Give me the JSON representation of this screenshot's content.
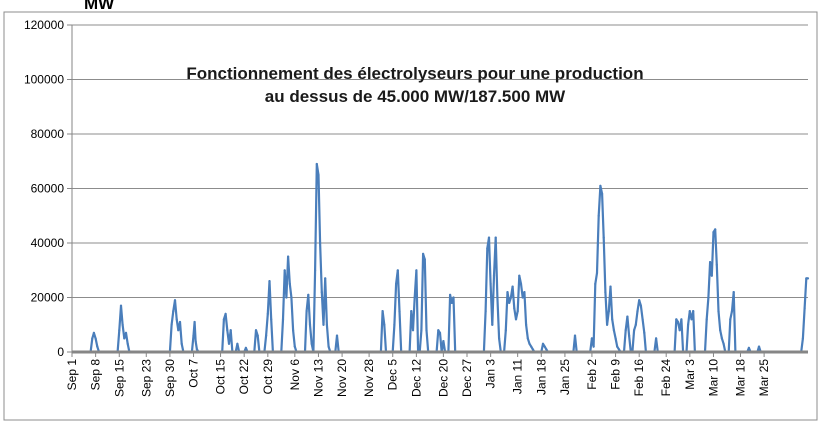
{
  "chart_data": {
    "type": "area",
    "title_line1": "Fonctionnement des électrolyseurs pour une production",
    "title_line2": "au dessus de 45.000 MW/187.500 MW",
    "ylabel": "MW",
    "ylim": [
      0,
      120000
    ],
    "yticks": [
      "0",
      "20000",
      "40000",
      "60000",
      "80000",
      "100000",
      "120000"
    ],
    "grid": true,
    "legend": "none",
    "color": "#4a7ebb",
    "xlim": [
      0,
      218
    ],
    "xticks": [
      {
        "day": 0,
        "label": "Sep 1"
      },
      {
        "day": 7,
        "label": "Sep 8"
      },
      {
        "day": 14,
        "label": "Sep 15"
      },
      {
        "day": 22,
        "label": "Sep 23"
      },
      {
        "day": 29,
        "label": "Sep 30"
      },
      {
        "day": 36,
        "label": "Oct 7"
      },
      {
        "day": 44,
        "label": "Oct 15"
      },
      {
        "day": 51,
        "label": "Oct 22"
      },
      {
        "day": 58,
        "label": "Oct 29"
      },
      {
        "day": 66,
        "label": "Nov 6"
      },
      {
        "day": 73,
        "label": "Nov 13"
      },
      {
        "day": 80,
        "label": "Nov 20"
      },
      {
        "day": 88,
        "label": "Nov 28"
      },
      {
        "day": 95,
        "label": "Dec 5"
      },
      {
        "day": 102,
        "label": "Dec 12"
      },
      {
        "day": 110,
        "label": "Dec 20"
      },
      {
        "day": 117,
        "label": "Dec 27"
      },
      {
        "day": 124,
        "label": "Jan 3"
      },
      {
        "day": 132,
        "label": "Jan 11"
      },
      {
        "day": 139,
        "label": "Jan 18"
      },
      {
        "day": 146,
        "label": "Jan 25"
      },
      {
        "day": 154,
        "label": "Feb 2"
      },
      {
        "day": 161,
        "label": "Feb 9"
      },
      {
        "day": 168,
        "label": "Feb 16"
      },
      {
        "day": 176,
        "label": "Feb 24"
      },
      {
        "day": 183,
        "label": "Mar 3"
      },
      {
        "day": 190,
        "label": "Mar 10"
      },
      {
        "day": 198,
        "label": "Mar 18"
      },
      {
        "day": 205,
        "label": "Mar 25"
      }
    ],
    "x": [
      0,
      5.5,
      6,
      6.5,
      7,
      7.5,
      8,
      8.5,
      13.5,
      14,
      14.5,
      15,
      15.5,
      16,
      16.5,
      17,
      17.5,
      29,
      29.5,
      30,
      30.5,
      31,
      31.5,
      32,
      32.5,
      33,
      35.5,
      36,
      36.3,
      36.6,
      37,
      37.5,
      44.5,
      45,
      45.5,
      46,
      46.5,
      47,
      47.5,
      48.5,
      49,
      49.5,
      51,
      51.5,
      52,
      54,
      54.5,
      55,
      55.5,
      57,
      57.5,
      58,
      58.5,
      59,
      59.5,
      62,
      62.5,
      63,
      63.5,
      64,
      64.5,
      65,
      65.5,
      66,
      66.5,
      69,
      69.5,
      70,
      70.5,
      71,
      71.5,
      72,
      72.5,
      73,
      73.5,
      74,
      74.5,
      75,
      75.5,
      76,
      76.5,
      78,
      78.5,
      79,
      91.5,
      92,
      92.5,
      93,
      95,
      95.5,
      96,
      96.5,
      97,
      97.5,
      100,
      100.5,
      101,
      101.5,
      102,
      102.5,
      103,
      103.5,
      104,
      104.5,
      105,
      105.5,
      108,
      108.5,
      109,
      109.5,
      110,
      110.5,
      111.5,
      112,
      112.5,
      113,
      113.5,
      122,
      122.5,
      123,
      123.5,
      124,
      124.5,
      125,
      125.5,
      126,
      126.5,
      127,
      128,
      128.5,
      129,
      129.5,
      130,
      130.5,
      131,
      131.5,
      132,
      132.5,
      133,
      133.5,
      134,
      134.5,
      135,
      135.5,
      136,
      136.5,
      137,
      139,
      139.5,
      140,
      140.5,
      141,
      148.5,
      149,
      149.5,
      153.5,
      154,
      154.5,
      155,
      155.5,
      156,
      156.5,
      157,
      157.5,
      158,
      158.5,
      159,
      159.5,
      160,
      160.5,
      161,
      161.5,
      162,
      162.5,
      163.5,
      164,
      164.5,
      165,
      165.5,
      166,
      166.5,
      167,
      167.5,
      168,
      168.5,
      169,
      169.5,
      170,
      172.5,
      173,
      173.5,
      178.5,
      179,
      179.5,
      180,
      180.5,
      181,
      182,
      182.5,
      183,
      183.5,
      184,
      184.5,
      187.5,
      188,
      188.5,
      189,
      189.5,
      190,
      190.5,
      191,
      191.5,
      192,
      192.5,
      193,
      193.5,
      194.5,
      195,
      195.5,
      196,
      196.5,
      200,
      200.5,
      201,
      203,
      203.5,
      204,
      216,
      216.5,
      217,
      217.5,
      218
    ],
    "y": [
      0,
      0,
      5000,
      7000,
      5000,
      2000,
      0,
      0,
      0,
      8000,
      17000,
      10000,
      5000,
      7000,
      3000,
      0,
      0,
      0,
      10000,
      15000,
      19000,
      12000,
      8000,
      11000,
      3000,
      0,
      0,
      6000,
      11000,
      4000,
      1000,
      0,
      0,
      12000,
      14000,
      8000,
      3000,
      8000,
      0,
      0,
      3000,
      0,
      0,
      1500,
      0,
      0,
      8000,
      6000,
      0,
      0,
      6000,
      14000,
      26000,
      12000,
      0,
      0,
      12000,
      30000,
      20000,
      35000,
      25000,
      20000,
      8000,
      2000,
      0,
      0,
      15000,
      21000,
      10000,
      3000,
      0,
      30000,
      69000,
      65000,
      40000,
      22000,
      10000,
      27000,
      10000,
      2000,
      0,
      0,
      6000,
      0,
      0,
      15000,
      10000,
      0,
      0,
      10000,
      25000,
      30000,
      15000,
      0,
      0,
      15000,
      8000,
      20000,
      30000,
      0,
      0,
      8000,
      36000,
      34000,
      8000,
      0,
      0,
      8000,
      7000,
      0,
      4000,
      0,
      0,
      21000,
      18000,
      20000,
      0,
      0,
      15000,
      38000,
      42000,
      25000,
      10000,
      28000,
      42000,
      20000,
      5000,
      0,
      0,
      8000,
      22000,
      18000,
      20000,
      24000,
      16000,
      12000,
      15000,
      28000,
      25000,
      20000,
      22000,
      10000,
      5000,
      3000,
      2000,
      1000,
      0,
      0,
      3000,
      2000,
      1000,
      0,
      0,
      6000,
      0,
      0,
      5000,
      2000,
      25000,
      29000,
      50000,
      61000,
      58000,
      42000,
      22000,
      10000,
      15000,
      24000,
      12000,
      8000,
      5000,
      2000,
      1000,
      0,
      0,
      8000,
      13000,
      6000,
      0,
      0,
      8000,
      10000,
      15000,
      19000,
      17000,
      12000,
      7000,
      0,
      0,
      5000,
      0,
      0,
      12000,
      11000,
      8000,
      12000,
      0,
      0,
      10000,
      15000,
      12000,
      15000,
      0,
      0,
      12000,
      20000,
      33000,
      28000,
      44000,
      45000,
      32000,
      15000,
      8000,
      5000,
      3000,
      0,
      0,
      12000,
      15000,
      22000,
      0,
      0,
      1500,
      0,
      0,
      2000,
      0,
      0,
      5000,
      16000,
      27000,
      27000
    ]
  }
}
